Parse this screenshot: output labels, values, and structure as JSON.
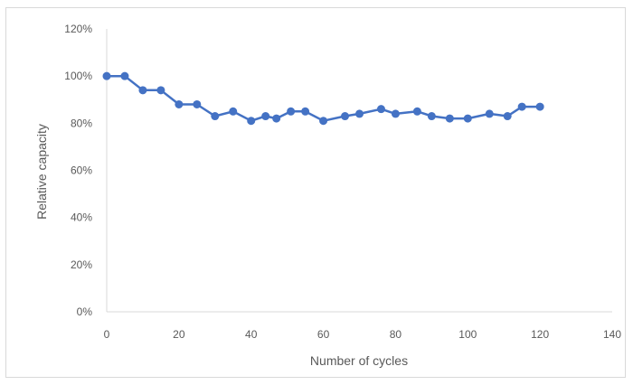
{
  "chart_data": {
    "type": "line",
    "title": "",
    "xlabel": "Number of cycles",
    "ylabel": "Relative capacity",
    "xlim": [
      0,
      140
    ],
    "ylim": [
      0,
      120
    ],
    "x_ticks": [
      0,
      20,
      40,
      60,
      80,
      100,
      120,
      140
    ],
    "y_ticks": [
      0,
      20,
      40,
      60,
      80,
      100,
      120
    ],
    "x_tick_labels": [
      "0",
      "20",
      "40",
      "60",
      "80",
      "100",
      "120",
      "140"
    ],
    "y_tick_labels": [
      "0%",
      "20%",
      "40%",
      "60%",
      "80%",
      "100%",
      "120%"
    ],
    "y_unit": "%",
    "grid": false,
    "legend": "none",
    "series": [
      {
        "color": "#4472c4",
        "x": [
          0,
          5,
          10,
          15,
          20,
          25,
          30,
          35,
          40,
          44,
          47,
          51,
          55,
          60,
          66,
          70,
          76,
          80,
          86,
          90,
          95,
          100,
          106,
          111,
          115,
          120
        ],
        "y": [
          100,
          100,
          94,
          94,
          88,
          88,
          83,
          85,
          81,
          83,
          82,
          85,
          85,
          81,
          83,
          84,
          86,
          84,
          85,
          83,
          82,
          82,
          84,
          83,
          87,
          87
        ]
      }
    ]
  }
}
